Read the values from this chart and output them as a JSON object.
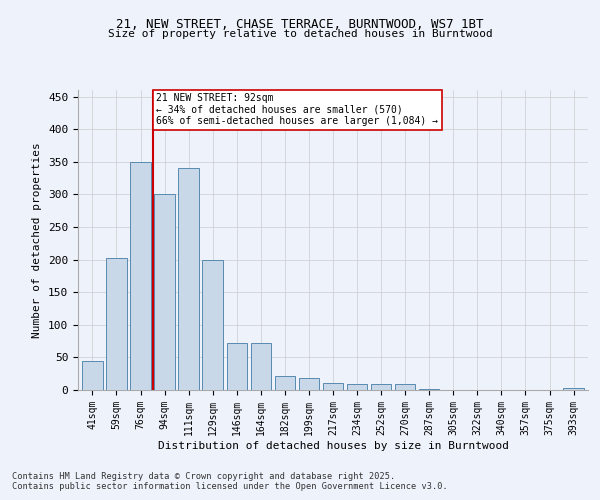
{
  "title1": "21, NEW STREET, CHASE TERRACE, BURNTWOOD, WS7 1BT",
  "title2": "Size of property relative to detached houses in Burntwood",
  "xlabel": "Distribution of detached houses by size in Burntwood",
  "ylabel": "Number of detached properties",
  "categories": [
    "41sqm",
    "59sqm",
    "76sqm",
    "94sqm",
    "111sqm",
    "129sqm",
    "146sqm",
    "164sqm",
    "182sqm",
    "199sqm",
    "217sqm",
    "234sqm",
    "252sqm",
    "270sqm",
    "287sqm",
    "305sqm",
    "322sqm",
    "340sqm",
    "357sqm",
    "375sqm",
    "393sqm"
  ],
  "values": [
    45,
    203,
    350,
    300,
    340,
    200,
    72,
    72,
    22,
    19,
    10,
    9,
    9,
    9,
    1,
    0,
    0,
    0,
    0,
    0,
    3
  ],
  "bar_color": "#c8d8e8",
  "bar_edge_color": "#5a8ab0",
  "vline_color": "#cc0000",
  "vline_x_index": 2.5,
  "annotation_text": "21 NEW STREET: 92sqm\n← 34% of detached houses are smaller (570)\n66% of semi-detached houses are larger (1,084) →",
  "annotation_box_color": "#ffffff",
  "annotation_box_edge": "#cc0000",
  "ylim": [
    0,
    460
  ],
  "yticks": [
    0,
    50,
    100,
    150,
    200,
    250,
    300,
    350,
    400,
    450
  ],
  "footer1": "Contains HM Land Registry data © Crown copyright and database right 2025.",
  "footer2": "Contains public sector information licensed under the Open Government Licence v3.0.",
  "bg_color": "#eef2fb",
  "plot_bg_color": "#eef2fb"
}
